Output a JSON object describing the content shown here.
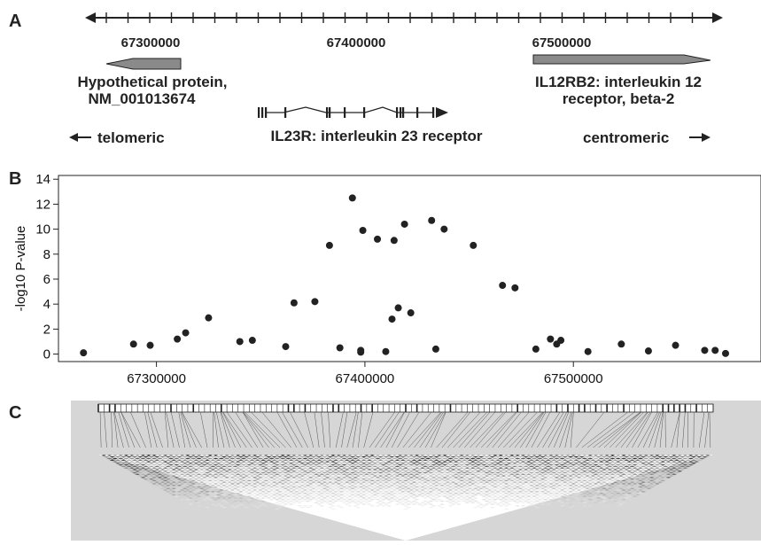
{
  "panels": {
    "a": "A",
    "b": "B",
    "c": "C"
  },
  "panel_a": {
    "position_labels": [
      "67300000",
      "67400000",
      "67500000"
    ],
    "genes": {
      "hypothetical": {
        "line1": "Hypothetical protein,",
        "line2": "NM_001013674"
      },
      "il23r": {
        "label": "IL23R: interleukin 23 receptor"
      },
      "il12rb2": {
        "line1": "IL12RB2: interleukin 12",
        "line2": "receptor, beta-2"
      }
    },
    "telomeric": "telomeric",
    "centromeric": "centromeric",
    "colors": {
      "gene_fill": "#8a8a8a",
      "line": "#222222"
    }
  },
  "chart_data": {
    "type": "scatter",
    "title": "",
    "xlabel": "",
    "ylabel": "-log10 P-value",
    "xlim": [
      67253000,
      67590000
    ],
    "ylim": [
      -0.6,
      14.3
    ],
    "xticks": [
      67300000,
      67400000,
      67500000
    ],
    "xtick_labels": [
      "67300000",
      "67400000",
      "67500000"
    ],
    "yticks": [
      0,
      2,
      4,
      6,
      8,
      10,
      12,
      14
    ],
    "ytick_labels": [
      "0",
      "2",
      "4",
      "6",
      "8",
      "10",
      "12",
      "14"
    ],
    "grid": false,
    "legend": "none",
    "marker_color": "#222222",
    "points": [
      [
        67265000,
        0.1
      ],
      [
        67289000,
        0.8
      ],
      [
        67297000,
        0.7
      ],
      [
        67310000,
        1.2
      ],
      [
        67314000,
        1.7
      ],
      [
        67325000,
        2.9
      ],
      [
        67340000,
        1.0
      ],
      [
        67346000,
        1.1
      ],
      [
        67362000,
        0.6
      ],
      [
        67366000,
        4.1
      ],
      [
        67376000,
        4.2
      ],
      [
        67383000,
        8.7
      ],
      [
        67388000,
        0.5
      ],
      [
        67394000,
        12.5
      ],
      [
        67398000,
        0.3
      ],
      [
        67398000,
        0.15
      ],
      [
        67399000,
        9.9
      ],
      [
        67406000,
        9.2
      ],
      [
        67410000,
        0.2
      ],
      [
        67413000,
        2.8
      ],
      [
        67414000,
        9.1
      ],
      [
        67416000,
        3.7
      ],
      [
        67419000,
        10.4
      ],
      [
        67422000,
        3.3
      ],
      [
        67432000,
        10.7
      ],
      [
        67434000,
        0.4
      ],
      [
        67438000,
        10.0
      ],
      [
        67452000,
        8.7
      ],
      [
        67466000,
        5.5
      ],
      [
        67472000,
        5.3
      ],
      [
        67482000,
        0.4
      ],
      [
        67489000,
        1.2
      ],
      [
        67492000,
        0.8
      ],
      [
        67494000,
        1.1
      ],
      [
        67507000,
        0.2
      ],
      [
        67523000,
        0.8
      ],
      [
        67536000,
        0.25
      ],
      [
        67549000,
        0.7
      ],
      [
        67563000,
        0.3
      ],
      [
        67568000,
        0.3
      ],
      [
        67573000,
        0.05
      ]
    ]
  }
}
